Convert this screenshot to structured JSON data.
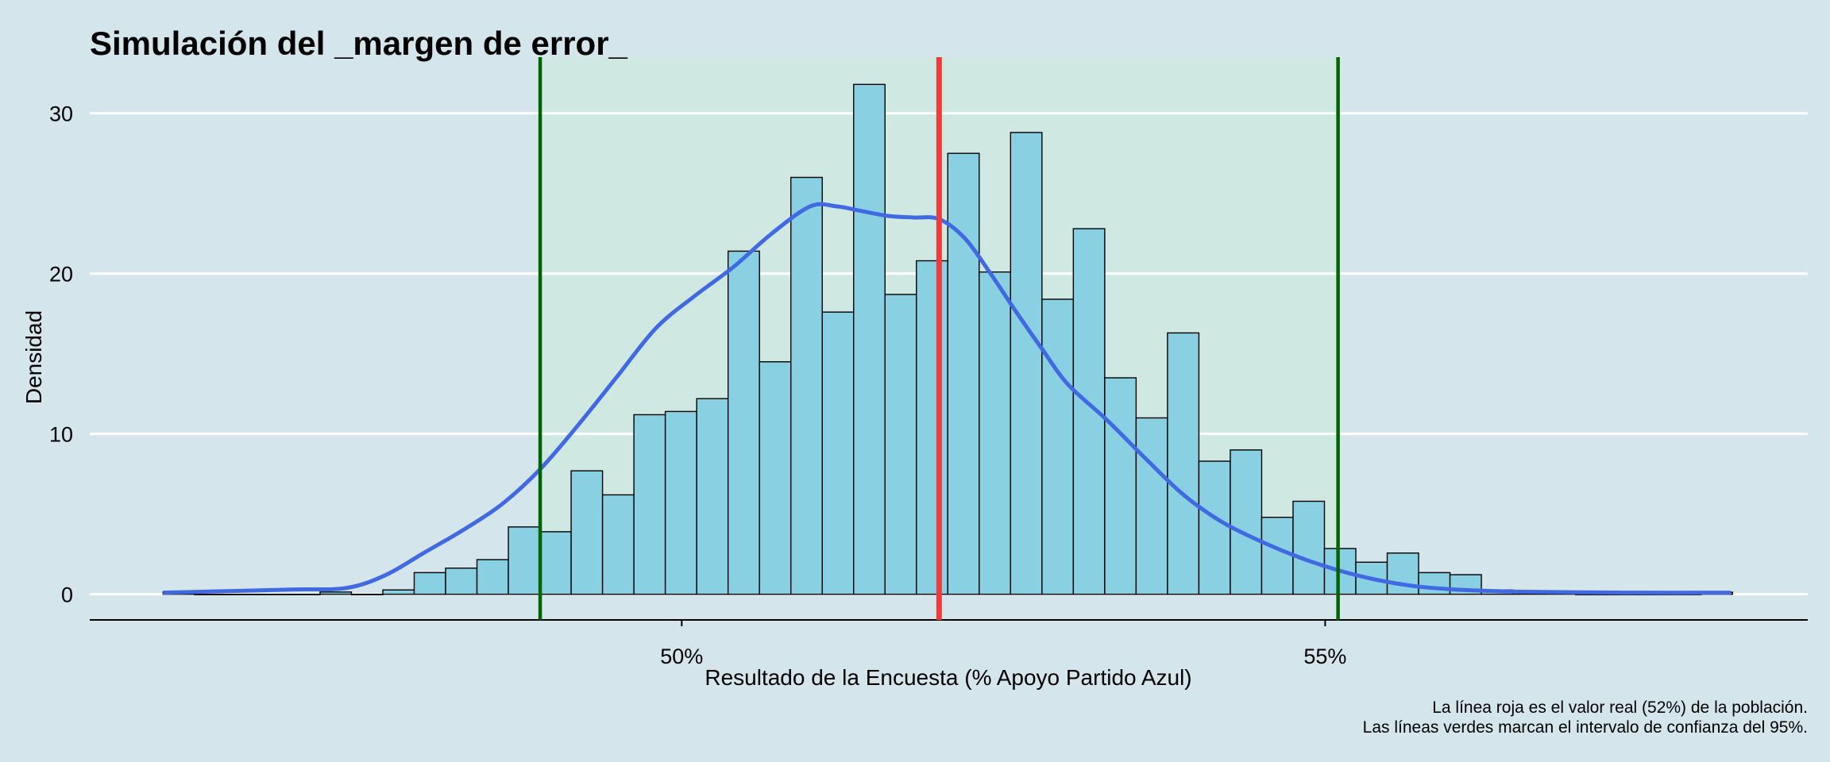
{
  "chart_data": {
    "type": "bar",
    "title": "Simulación del _margen de error_",
    "xlabel": "Resultado de la Encuesta (% Apoyo Partido Azul)",
    "ylabel": "Densidad",
    "caption": [
      "La línea roja es el valor real (52%) de la población.",
      "Las líneas verdes marcan el intervalo de confianza del 95%."
    ],
    "xlim": [
      0.454,
      0.5875
    ],
    "ylim": [
      -1.6,
      33.5
    ],
    "x_ticks": [
      {
        "value": 0.5,
        "label": "50%"
      },
      {
        "value": 0.55,
        "label": "55%"
      }
    ],
    "y_ticks": [
      {
        "value": 0,
        "label": "0"
      },
      {
        "value": 10,
        "label": "10"
      },
      {
        "value": 20,
        "label": "20"
      },
      {
        "value": 30,
        "label": "30"
      }
    ],
    "grid": "horizontal",
    "bin_width": 0.002439,
    "bin_start": 0.4597,
    "histogram": [
      0.14,
      0,
      0,
      0,
      0,
      0.14,
      0,
      0.27,
      1.35,
      1.63,
      2.16,
      4.2,
      3.9,
      7.7,
      6.2,
      11.2,
      11.4,
      12.2,
      21.4,
      14.5,
      26.0,
      17.6,
      31.8,
      18.7,
      20.8,
      27.5,
      20.1,
      28.8,
      18.4,
      22.8,
      13.5,
      11.0,
      16.3,
      8.3,
      9.0,
      4.8,
      5.8,
      2.85,
      2.0,
      2.57,
      1.35,
      1.22,
      0.27,
      0.13,
      0.13,
      0,
      0,
      0,
      0,
      0.13
    ],
    "density_curve": {
      "x": [
        0.4597,
        0.465,
        0.47,
        0.474,
        0.477,
        0.48,
        0.483,
        0.486,
        0.489,
        0.492,
        0.495,
        0.498,
        0.501,
        0.504,
        0.507,
        0.51,
        0.512,
        0.514,
        0.516,
        0.518,
        0.52,
        0.522,
        0.524,
        0.526,
        0.528,
        0.53,
        0.533,
        0.536,
        0.539,
        0.542,
        0.545,
        0.548,
        0.551,
        0.554,
        0.557,
        0.56,
        0.563,
        0.566,
        0.57,
        0.575,
        0.58,
        0.5815
      ],
      "y": [
        0.1,
        0.2,
        0.3,
        0.4,
        1.2,
        2.6,
        4.0,
        5.6,
        7.8,
        10.6,
        13.6,
        16.6,
        18.6,
        20.4,
        22.5,
        24.2,
        24.2,
        23.9,
        23.6,
        23.5,
        23.4,
        22.2,
        20.0,
        17.6,
        15.3,
        13.1,
        10.9,
        8.5,
        6.2,
        4.5,
        3.3,
        2.3,
        1.5,
        0.9,
        0.5,
        0.3,
        0.2,
        0.15,
        0.12,
        0.1,
        0.1,
        0.1
      ]
    },
    "true_value": 0.52,
    "confidence_interval": [
      0.489,
      0.551
    ],
    "colors": {
      "background": "#d5e5ec",
      "bar_fill": "#89d0e2",
      "bar_stroke": "#000000",
      "density_line": "#4169e1",
      "true_value_line": "#ee3b3b",
      "ci_line": "#006400",
      "ci_band": "#d0e8e2",
      "grid": "#ffffff"
    }
  }
}
